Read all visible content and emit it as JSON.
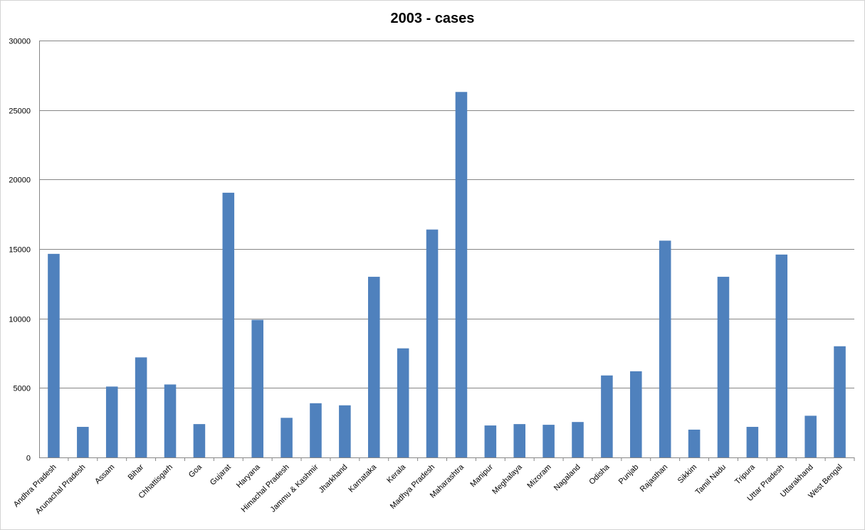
{
  "chart_data": {
    "type": "bar",
    "title": "2003 - cases",
    "xlabel": "",
    "ylabel": "",
    "ylim": [
      0,
      30000
    ],
    "yticks": [
      0,
      5000,
      10000,
      15000,
      20000,
      25000,
      30000
    ],
    "grid": true,
    "legend": "none",
    "bar_color": "#4F81BD",
    "categories": [
      "Andhra Pradesh",
      "Arunachal Pradesh",
      "Assam",
      "Bihar",
      "Chhattisgarh",
      "Goa",
      "Gujarat",
      "Haryana",
      "Himachal Pradesh",
      "Jammu & Kashmir",
      "Jharkhand",
      "Karnataka",
      "Kerala",
      "Madhya Pradesh",
      "Maharashtra",
      "Manipur",
      "Meghalaya",
      "Mizoram",
      "Nagaland",
      "Odisha",
      "Punjab",
      "Rajasthan",
      "Sikkim",
      "Tamil Nadu",
      "Tripura",
      "Uttar Pradesh",
      "Uttarakhand",
      "West Bengal"
    ],
    "values": [
      14650,
      2200,
      5100,
      7200,
      5250,
      2400,
      19050,
      9900,
      2850,
      3900,
      3750,
      13000,
      7850,
      16400,
      26300,
      2300,
      2400,
      2350,
      2550,
      5900,
      6200,
      15600,
      2000,
      13000,
      2200,
      14600,
      3000,
      8000
    ]
  }
}
